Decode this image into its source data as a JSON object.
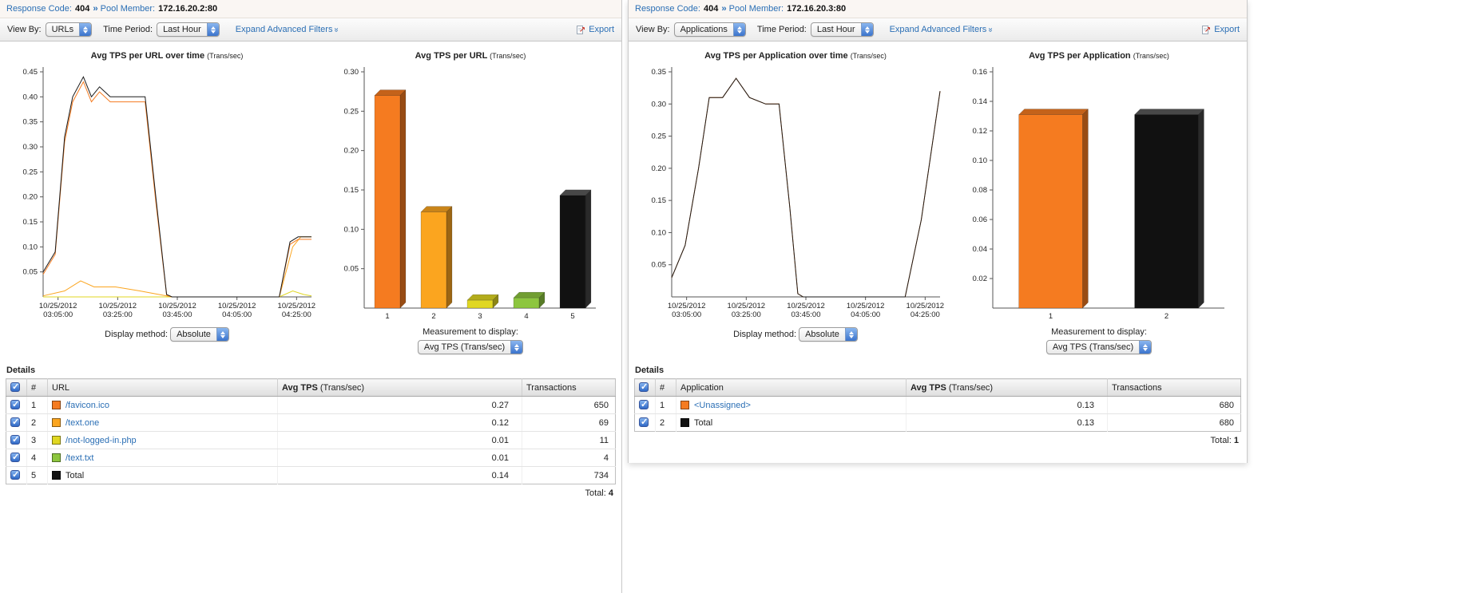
{
  "accent": "#2b6fb5",
  "panels": [
    {
      "breadcrumb": {
        "response_code_label": "Response Code:",
        "response_code": "404",
        "separator": "››",
        "pool_member_label": "Pool Member:",
        "pool_member": "172.16.20.2:80"
      },
      "toolbar": {
        "view_by_label": "View By:",
        "view_by": "URLs",
        "time_period_label": "Time Period:",
        "time_period": "Last Hour",
        "advanced_filters": "Expand Advanced Filters",
        "export": "Export"
      },
      "line_controls": {
        "label": "Display method:",
        "value": "Absolute"
      },
      "bar_controls": {
        "label": "Measurement to display:",
        "value": "Avg TPS (Trans/sec)"
      },
      "details": {
        "heading": "Details",
        "columns": {
          "num": "#",
          "name": "URL",
          "tps": "Avg TPS",
          "tps_unit": "(Trans/sec)",
          "transactions": "Transactions"
        },
        "rows": [
          {
            "num": "1",
            "color": "#f57b20",
            "name": "/favicon.ico",
            "tps": "0.27",
            "transactions": "650"
          },
          {
            "num": "2",
            "color": "#fba51f",
            "name": "/text.one",
            "tps": "0.12",
            "transactions": "69"
          },
          {
            "num": "3",
            "color": "#e0d722",
            "name": "/not-logged-in.php",
            "tps": "0.01",
            "transactions": "11"
          },
          {
            "num": "4",
            "color": "#8dc63f",
            "name": "/text.txt",
            "tps": "0.01",
            "transactions": "4"
          },
          {
            "num": "5",
            "color": "#111111",
            "name": "Total",
            "tps": "0.14",
            "transactions": "734"
          }
        ],
        "total_label": "Total:",
        "total_value": "4"
      }
    },
    {
      "breadcrumb": {
        "response_code_label": "Response Code:",
        "response_code": "404",
        "separator": "››",
        "pool_member_label": "Pool Member:",
        "pool_member": "172.16.20.3:80"
      },
      "toolbar": {
        "view_by_label": "View By:",
        "view_by": "Applications",
        "time_period_label": "Time Period:",
        "time_period": "Last Hour",
        "advanced_filters": "Expand Advanced Filters",
        "export": "Export"
      },
      "line_controls": {
        "label": "Display method:",
        "value": "Absolute"
      },
      "bar_controls": {
        "label": "Measurement to display:",
        "value": "Avg TPS (Trans/sec)"
      },
      "details": {
        "heading": "Details",
        "columns": {
          "num": "#",
          "name": "Application",
          "tps": "Avg TPS",
          "tps_unit": "(Trans/sec)",
          "transactions": "Transactions"
        },
        "rows": [
          {
            "num": "1",
            "color": "#f57b20",
            "name": "<Unassigned>",
            "tps": "0.13",
            "transactions": "680"
          },
          {
            "num": "2",
            "color": "#111111",
            "name": "Total",
            "tps": "0.13",
            "transactions": "680"
          }
        ],
        "total_label": "Total:",
        "total_value": "1"
      }
    }
  ],
  "chart_data": [
    {
      "type": "line",
      "title": "Avg TPS per URL over time",
      "title_unit": "(Trans/sec)",
      "xlabel": "",
      "ylabel": "",
      "x_ticks": [
        "10/25/2012 03:05:00",
        "10/25/2012 03:25:00",
        "10/25/2012 03:45:00",
        "10/25/2012 04:05:00",
        "10/25/2012 04:25:00"
      ],
      "ylim": [
        0,
        0.45
      ],
      "yticks": [
        0.05,
        0.1,
        0.15,
        0.2,
        0.25,
        0.3,
        0.35,
        0.4,
        0.45
      ],
      "grid": false,
      "legend": "none",
      "series": [
        {
          "name": "/not-logged-in.php",
          "color": "#e0d722",
          "points": [
            [
              0,
              0
            ],
            [
              0.5,
              0
            ],
            [
              0.88,
              0
            ],
            [
              0.93,
              0.012
            ],
            [
              0.97,
              0.005
            ],
            [
              1,
              0.002
            ]
          ]
        },
        {
          "name": "/text.one",
          "color": "#fba51f",
          "points": [
            [
              0,
              0.002
            ],
            [
              0.08,
              0.012
            ],
            [
              0.14,
              0.032
            ],
            [
              0.19,
              0.02
            ],
            [
              0.27,
              0.02
            ],
            [
              0.36,
              0.012
            ],
            [
              0.44,
              0.004
            ],
            [
              0.48,
              0
            ],
            [
              0.88,
              0
            ],
            [
              0.93,
              0.1
            ],
            [
              0.96,
              0.12
            ],
            [
              1,
              0.12
            ]
          ]
        },
        {
          "name": "/favicon.ico",
          "color": "#f57b20",
          "points": [
            [
              0,
              0.045
            ],
            [
              0.045,
              0.085
            ],
            [
              0.08,
              0.31
            ],
            [
              0.11,
              0.39
            ],
            [
              0.15,
              0.43
            ],
            [
              0.18,
              0.39
            ],
            [
              0.21,
              0.41
            ],
            [
              0.25,
              0.39
            ],
            [
              0.33,
              0.39
            ],
            [
              0.38,
              0.39
            ],
            [
              0.42,
              0.19
            ],
            [
              0.46,
              0.004
            ],
            [
              0.48,
              0
            ],
            [
              0.88,
              0
            ],
            [
              0.92,
              0.105
            ],
            [
              0.95,
              0.115
            ],
            [
              1,
              0.115
            ]
          ]
        },
        {
          "name": "Total",
          "color": "#1a1a1a",
          "points": [
            [
              0,
              0.05
            ],
            [
              0.045,
              0.09
            ],
            [
              0.08,
              0.32
            ],
            [
              0.11,
              0.4
            ],
            [
              0.15,
              0.44
            ],
            [
              0.18,
              0.4
            ],
            [
              0.21,
              0.42
            ],
            [
              0.25,
              0.4
            ],
            [
              0.33,
              0.4
            ],
            [
              0.38,
              0.4
            ],
            [
              0.42,
              0.2
            ],
            [
              0.46,
              0.005
            ],
            [
              0.48,
              0
            ],
            [
              0.88,
              0
            ],
            [
              0.92,
              0.11
            ],
            [
              0.95,
              0.12
            ],
            [
              1,
              0.12
            ]
          ]
        }
      ]
    },
    {
      "type": "bar",
      "title": "Avg TPS per URL",
      "title_unit": "(Trans/sec)",
      "categories": [
        "1",
        "2",
        "3",
        "4",
        "5"
      ],
      "values": [
        0.27,
        0.122,
        0.01,
        0.013,
        0.143
      ],
      "colors": [
        "#f57b20",
        "#fba51f",
        "#e0d722",
        "#8dc63f",
        "#111111"
      ],
      "ylim": [
        0,
        0.3
      ],
      "yticks": [
        0.05,
        0.1,
        0.15,
        0.2,
        0.25,
        0.3
      ],
      "grid": false,
      "legend": "none"
    },
    {
      "type": "line",
      "title": "Avg TPS per Application over time",
      "title_unit": "(Trans/sec)",
      "xlabel": "",
      "ylabel": "",
      "x_ticks": [
        "10/25/2012 03:05:00",
        "10/25/2012 03:25:00",
        "10/25/2012 03:45:00",
        "10/25/2012 04:05:00",
        "10/25/2012 04:25:00"
      ],
      "ylim": [
        0,
        0.35
      ],
      "yticks": [
        0.05,
        0.1,
        0.15,
        0.2,
        0.25,
        0.3,
        0.35
      ],
      "grid": false,
      "legend": "none",
      "series": [
        {
          "name": "<Unassigned>",
          "color": "#f57b20",
          "points": [
            [
              0,
              0.03
            ],
            [
              0.05,
              0.08
            ],
            [
              0.1,
              0.2
            ],
            [
              0.14,
              0.31
            ],
            [
              0.19,
              0.31
            ],
            [
              0.24,
              0.34
            ],
            [
              0.29,
              0.31
            ],
            [
              0.35,
              0.3
            ],
            [
              0.4,
              0.3
            ],
            [
              0.44,
              0.14
            ],
            [
              0.47,
              0.005
            ],
            [
              0.49,
              0
            ],
            [
              0.87,
              0
            ],
            [
              0.93,
              0.12
            ],
            [
              1,
              0.32
            ]
          ]
        },
        {
          "name": "Total",
          "color": "#1a1a1a",
          "points": [
            [
              0,
              0.03
            ],
            [
              0.05,
              0.08
            ],
            [
              0.1,
              0.2
            ],
            [
              0.14,
              0.31
            ],
            [
              0.19,
              0.31
            ],
            [
              0.24,
              0.34
            ],
            [
              0.29,
              0.31
            ],
            [
              0.35,
              0.3
            ],
            [
              0.4,
              0.3
            ],
            [
              0.44,
              0.14
            ],
            [
              0.47,
              0.005
            ],
            [
              0.49,
              0
            ],
            [
              0.87,
              0
            ],
            [
              0.93,
              0.12
            ],
            [
              1,
              0.32
            ]
          ]
        }
      ]
    },
    {
      "type": "bar",
      "title": "Avg TPS per Application",
      "title_unit": "(Trans/sec)",
      "categories": [
        "1",
        "2"
      ],
      "values": [
        0.131,
        0.131
      ],
      "colors": [
        "#f57b20",
        "#111111"
      ],
      "ylim": [
        0,
        0.16
      ],
      "yticks": [
        0.02,
        0.04,
        0.06,
        0.08,
        0.1,
        0.12,
        0.14,
        0.16
      ],
      "grid": false,
      "legend": "none"
    }
  ]
}
